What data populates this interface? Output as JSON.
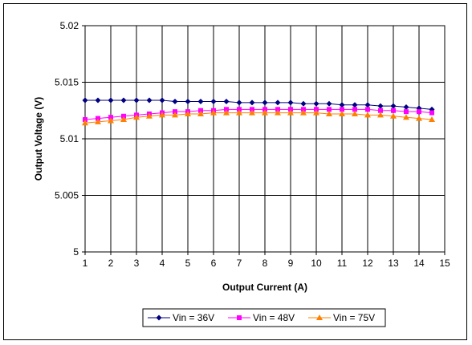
{
  "chart_data": {
    "type": "line",
    "title": "",
    "xlabel": "Output Current (A)",
    "ylabel": "Output Voltage (V)",
    "xlim": [
      1,
      15
    ],
    "ylim": [
      5,
      5.02
    ],
    "xticks": [
      "1",
      "2",
      "3",
      "4",
      "5",
      "6",
      "7",
      "8",
      "9",
      "10",
      "11",
      "12",
      "13",
      "14",
      "15"
    ],
    "yticks": [
      "5",
      "5.005",
      "5.01",
      "5.015",
      "5.02"
    ],
    "grid": true,
    "legend_position": "bottom",
    "x": [
      1,
      1.5,
      2,
      2.5,
      3,
      3.5,
      4,
      4.5,
      5,
      5.5,
      6,
      6.5,
      7,
      7.5,
      8,
      8.5,
      9,
      9.5,
      10,
      10.5,
      11,
      11.5,
      12,
      12.5,
      13,
      13.5,
      14,
      14.5
    ],
    "series": [
      {
        "name": "Vin = 36V",
        "color": "#000080",
        "marker": "diamond",
        "values": [
          5.0134,
          5.0134,
          5.0134,
          5.0134,
          5.0134,
          5.0134,
          5.0134,
          5.0133,
          5.0133,
          5.0133,
          5.0133,
          5.0133,
          5.0132,
          5.0132,
          5.0132,
          5.0132,
          5.0132,
          5.0131,
          5.0131,
          5.0131,
          5.013,
          5.013,
          5.013,
          5.0129,
          5.0129,
          5.0128,
          5.0127,
          5.0126
        ]
      },
      {
        "name": "Vin = 48V",
        "color": "#FF00FF",
        "marker": "square",
        "values": [
          5.0117,
          5.0118,
          5.0119,
          5.012,
          5.0121,
          5.0122,
          5.0123,
          5.0124,
          5.0124,
          5.0125,
          5.0125,
          5.0126,
          5.0126,
          5.0126,
          5.0126,
          5.0126,
          5.0126,
          5.0126,
          5.0126,
          5.0126,
          5.0126,
          5.0126,
          5.0126,
          5.0125,
          5.0125,
          5.0124,
          5.0124,
          5.0123
        ]
      },
      {
        "name": "Vin = 75V",
        "color": "#FF8000",
        "marker": "triangle",
        "values": [
          5.0114,
          5.0115,
          5.0116,
          5.0117,
          5.0119,
          5.012,
          5.0121,
          5.0121,
          5.0122,
          5.0122,
          5.0123,
          5.0123,
          5.0123,
          5.0123,
          5.0123,
          5.0123,
          5.0123,
          5.0123,
          5.0123,
          5.0122,
          5.0122,
          5.0122,
          5.0121,
          5.0121,
          5.012,
          5.0119,
          5.0118,
          5.0117
        ]
      }
    ]
  }
}
